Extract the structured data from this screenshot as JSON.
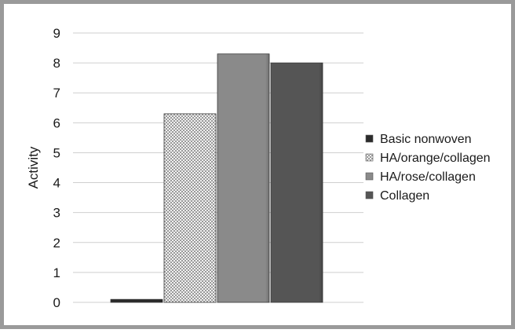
{
  "chart_data": {
    "type": "bar",
    "title": "",
    "xlabel": "",
    "ylabel": "Activity",
    "ylim": [
      0,
      9
    ],
    "yticks": [
      0,
      1,
      2,
      3,
      4,
      5,
      6,
      7,
      8,
      9
    ],
    "grid": true,
    "legend_position": "right",
    "series": [
      {
        "name": "Basic nonwoven",
        "value": 0.1,
        "color": "#2b2b2b",
        "pattern": "solid"
      },
      {
        "name": "HA/orange/collagen",
        "value": 6.3,
        "color": "#c8c8c8",
        "pattern": "checker"
      },
      {
        "name": "HA/rose/collagen",
        "value": 8.3,
        "color": "#8a8a8a",
        "pattern": "solid"
      },
      {
        "name": "Collagen",
        "value": 8.0,
        "color": "#555555",
        "pattern": "solid"
      }
    ]
  }
}
